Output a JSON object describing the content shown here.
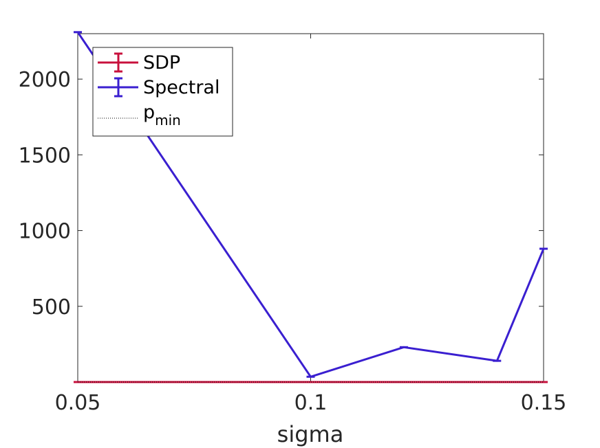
{
  "chart_data": {
    "type": "line",
    "xlabel": "sigma",
    "ylabel": "",
    "xlim": [
      0.05,
      0.15
    ],
    "ylim": [
      0,
      2300
    ],
    "x_ticks": [
      0.05,
      0.1,
      0.15
    ],
    "x_tick_labels": [
      "0.05",
      "0.1",
      "0.15"
    ],
    "y_ticks": [
      500,
      1000,
      1500,
      2000
    ],
    "y_tick_labels": [
      "500",
      "1000",
      "1500",
      "2000"
    ],
    "grid": false,
    "legend_position": "top-left",
    "series": [
      {
        "name": "SDP",
        "color": "#c8103c",
        "style": "solid-errorbar",
        "x": [
          0.05,
          0.1,
          0.12,
          0.14,
          0.15
        ],
        "y": [
          0,
          0,
          0,
          0,
          0
        ]
      },
      {
        "name": "Spectral",
        "color": "#3a1fd0",
        "style": "solid-errorbar",
        "x": [
          0.05,
          0.1,
          0.12,
          0.14,
          0.15
        ],
        "y": [
          2310,
          35,
          230,
          140,
          880
        ]
      },
      {
        "name": "p",
        "name_subscript": "min",
        "color": "#000000",
        "style": "dotted",
        "x": [
          0.05,
          0.15
        ],
        "y": [
          0,
          0
        ]
      }
    ]
  }
}
